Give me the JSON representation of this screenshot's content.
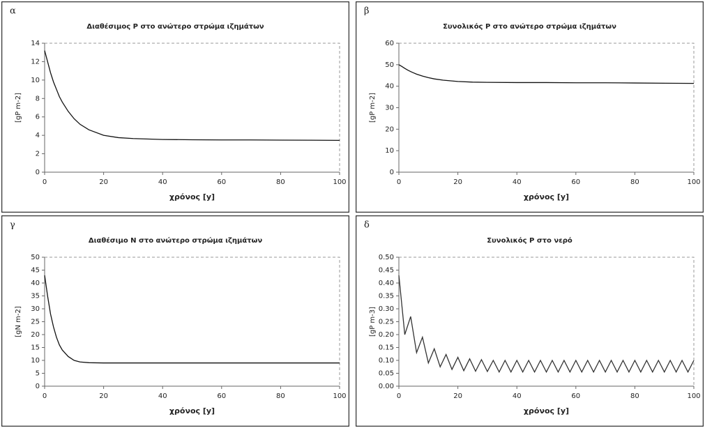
{
  "chart_data": [
    {
      "type": "line",
      "label": "α",
      "title": "Διαθέσιμος P στο ανώτερο στρώμα ιζημάτων",
      "x_label": "χρόνος  [y]",
      "y_label": "[gP m-2]",
      "color": "#111111",
      "xlim": [
        0,
        100
      ],
      "xticks": [
        0,
        20,
        40,
        60,
        80,
        100
      ],
      "ylim": [
        0,
        14
      ],
      "yticks": [
        0,
        2,
        4,
        6,
        8,
        10,
        12,
        14
      ],
      "x": [
        0,
        1,
        2,
        3,
        4,
        5,
        6,
        8,
        10,
        12,
        15,
        20,
        25,
        30,
        40,
        50,
        60,
        70,
        80,
        90,
        100
      ],
      "values": [
        13.2,
        12.0,
        10.8,
        9.8,
        9.0,
        8.2,
        7.6,
        6.6,
        5.8,
        5.2,
        4.6,
        4.0,
        3.75,
        3.65,
        3.55,
        3.52,
        3.5,
        3.5,
        3.48,
        3.47,
        3.45
      ]
    },
    {
      "type": "line",
      "label": "β",
      "title": "Συνολικός P στο ανώτερο στρώμα ιζημάτων",
      "x_label": "χρόνος  [y]",
      "y_label": "[gP m-2]",
      "color": "#111111",
      "xlim": [
        0,
        100
      ],
      "xticks": [
        0,
        20,
        40,
        60,
        80,
        100
      ],
      "ylim": [
        0,
        60
      ],
      "yticks": [
        0,
        10,
        20,
        30,
        40,
        50,
        60
      ],
      "x": [
        0,
        1,
        2,
        3,
        4,
        5,
        6,
        8,
        10,
        12,
        15,
        20,
        25,
        30,
        40,
        50,
        60,
        70,
        80,
        90,
        100
      ],
      "values": [
        50,
        49.2,
        48.3,
        47.5,
        46.8,
        46.2,
        45.6,
        44.7,
        44.0,
        43.4,
        42.8,
        42.2,
        41.9,
        41.8,
        41.7,
        41.7,
        41.6,
        41.6,
        41.5,
        41.4,
        41.3
      ]
    },
    {
      "type": "line",
      "label": "γ",
      "title": "Διαθέσιμο N στο ανώτερο στρώμα ιζημάτων",
      "x_label": "χρόνος  [y]",
      "y_label": "[gN m-2]",
      "color": "#111111",
      "xlim": [
        0,
        100
      ],
      "xticks": [
        0,
        20,
        40,
        60,
        80,
        100
      ],
      "ylim": [
        0,
        50
      ],
      "yticks": [
        0,
        5,
        10,
        15,
        20,
        25,
        30,
        35,
        40,
        45,
        50
      ],
      "x": [
        0,
        1,
        2,
        3,
        4,
        5,
        6,
        8,
        10,
        12,
        15,
        20,
        25,
        30,
        40,
        50,
        60,
        70,
        80,
        90,
        100
      ],
      "values": [
        43,
        35,
        28,
        23,
        19,
        16,
        14,
        11.5,
        10,
        9.4,
        9.1,
        9.0,
        9.0,
        9.0,
        9.0,
        9.0,
        9.0,
        9.0,
        9.0,
        9.0,
        9.0
      ]
    },
    {
      "type": "line",
      "label": "δ",
      "title": "Συνολικός P στο νερό",
      "x_label": "χρόνος  [y]",
      "y_label": "[gP m-3]",
      "color": "#333333",
      "xlim": [
        0,
        100
      ],
      "xticks": [
        0,
        20,
        40,
        60,
        80,
        100
      ],
      "ylim": [
        0,
        0.5
      ],
      "yticks": [
        {
          "value": 0,
          "label": "0.00"
        },
        {
          "value": 0.05,
          "label": "0.05"
        },
        {
          "value": 0.1,
          "label": "0.10"
        },
        {
          "value": 0.15,
          "label": "0.15"
        },
        {
          "value": 0.2,
          "label": "0.20"
        },
        {
          "value": 0.25,
          "label": "0.25"
        },
        {
          "value": 0.3,
          "label": "0.30"
        },
        {
          "value": 0.35,
          "label": "0.35"
        },
        {
          "value": 0.4,
          "label": "0.40"
        },
        {
          "value": 0.45,
          "label": "0.45"
        },
        {
          "value": 0.5,
          "label": "0.50"
        }
      ],
      "x": [
        0,
        2,
        4,
        6,
        8,
        10,
        12,
        14,
        16,
        18,
        20,
        22,
        24,
        26,
        28,
        30,
        32,
        34,
        36,
        38,
        40,
        42,
        44,
        46,
        48,
        50,
        52,
        54,
        56,
        58,
        60,
        62,
        64,
        66,
        68,
        70,
        72,
        74,
        76,
        78,
        80,
        82,
        84,
        86,
        88,
        90,
        92,
        94,
        96,
        98,
        100
      ],
      "values": [
        0.43,
        0.2,
        0.27,
        0.13,
        0.19,
        0.09,
        0.145,
        0.075,
        0.123,
        0.065,
        0.112,
        0.06,
        0.106,
        0.058,
        0.103,
        0.057,
        0.1,
        0.055,
        0.1,
        0.055,
        0.1,
        0.055,
        0.1,
        0.055,
        0.1,
        0.055,
        0.1,
        0.055,
        0.1,
        0.055,
        0.1,
        0.055,
        0.1,
        0.055,
        0.1,
        0.055,
        0.1,
        0.055,
        0.1,
        0.055,
        0.1,
        0.055,
        0.1,
        0.055,
        0.1,
        0.055,
        0.1,
        0.055,
        0.1,
        0.055,
        0.1
      ]
    }
  ]
}
